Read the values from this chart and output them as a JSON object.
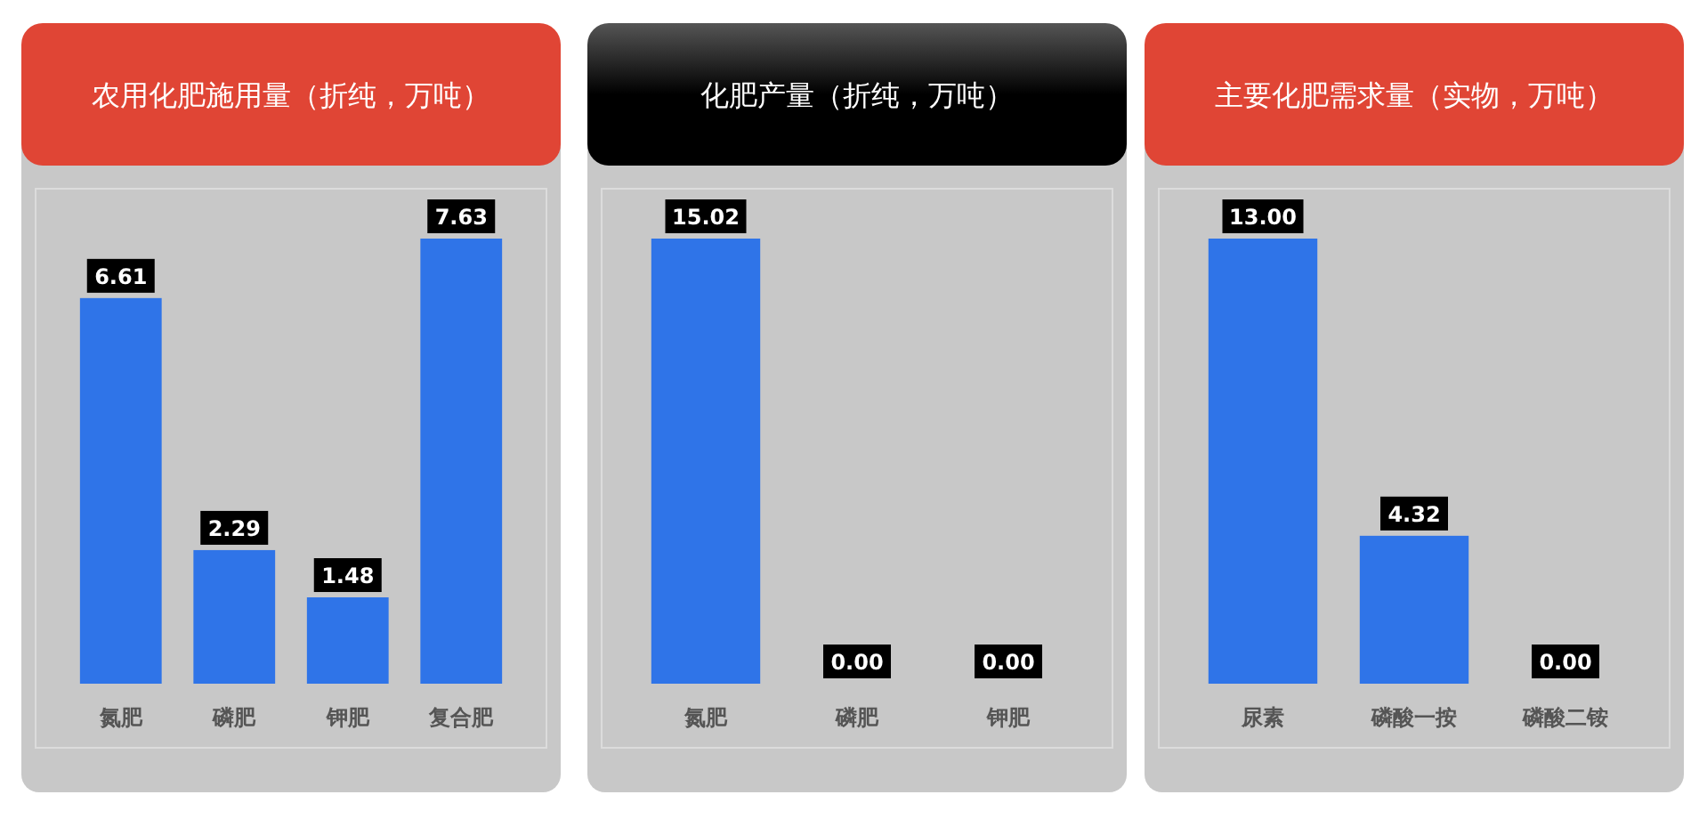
{
  "chart_data": [
    {
      "type": "bar",
      "title": "农用化肥施用量（折纯，万吨）",
      "categories": [
        "氮肥",
        "磷肥",
        "钾肥",
        "复合肥"
      ],
      "series": [
        {
          "color": "#2f74e8",
          "values": [
            6.61,
            2.29,
            1.48,
            7.63
          ],
          "value_labels": [
            "6.61",
            "2.29",
            "1.48",
            "7.63"
          ]
        }
      ]
    },
    {
      "type": "bar",
      "title": "化肥产量（折纯，万吨）",
      "categories": [
        "氮肥",
        "磷肥",
        "钾肥"
      ],
      "series": [
        {
          "color": "#2f74e8",
          "values": [
            15.02,
            0,
            0
          ],
          "value_labels": [
            "15.02",
            "0.00",
            "0.00"
          ]
        }
      ]
    },
    {
      "type": "bar",
      "title": "主要化肥需求量（实物，万吨）",
      "categories": [
        "尿素",
        "磷酸一按",
        "磷酸二铵"
      ],
      "series": [
        {
          "color": "#2f74e8",
          "values": [
            13.0,
            4.32,
            0
          ],
          "value_labels": [
            "13.00",
            "4.32",
            "0.00"
          ]
        }
      ]
    }
  ]
}
